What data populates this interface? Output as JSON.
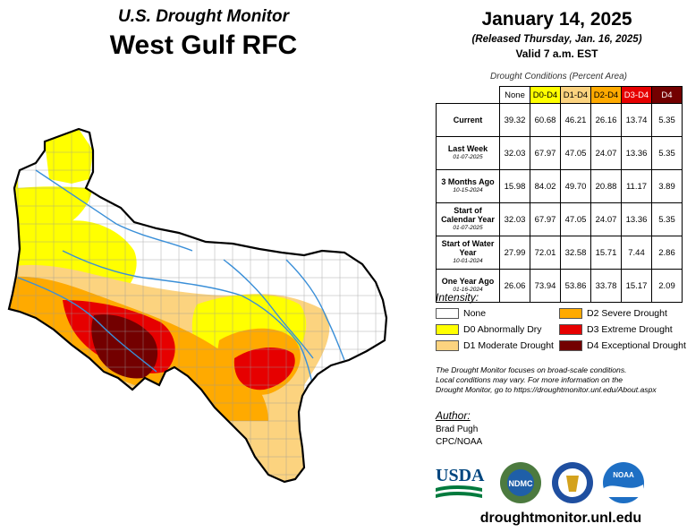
{
  "header": {
    "subtitle": "U.S. Drought Monitor",
    "title": "West Gulf RFC",
    "date": "January 14, 2025",
    "released": "(Released Thursday, Jan. 16, 2025)",
    "valid": "Valid 7 a.m. EST"
  },
  "table": {
    "caption": "Drought Conditions (Percent Area)",
    "columns": [
      "None",
      "D0-D4",
      "D1-D4",
      "D2-D4",
      "D3-D4",
      "D4"
    ],
    "rows": [
      {
        "label": "Current",
        "date": "",
        "values": [
          "39.32",
          "60.68",
          "46.21",
          "26.16",
          "13.74",
          "5.35"
        ]
      },
      {
        "label": "Last Week",
        "date": "01-07-2025",
        "values": [
          "32.03",
          "67.97",
          "47.05",
          "24.07",
          "13.36",
          "5.35"
        ]
      },
      {
        "label": "3 Months Ago",
        "date": "10-15-2024",
        "values": [
          "15.98",
          "84.02",
          "49.70",
          "20.88",
          "11.17",
          "3.89"
        ]
      },
      {
        "label": "Start of Calendar Year",
        "date": "01-07-2025",
        "values": [
          "32.03",
          "67.97",
          "47.05",
          "24.07",
          "13.36",
          "5.35"
        ]
      },
      {
        "label": "Start of Water Year",
        "date": "10-01-2024",
        "values": [
          "27.99",
          "72.01",
          "32.58",
          "15.71",
          "7.44",
          "2.86"
        ]
      },
      {
        "label": "One Year Ago",
        "date": "01-16-2024",
        "values": [
          "26.06",
          "73.94",
          "53.86",
          "33.78",
          "15.17",
          "2.09"
        ]
      }
    ]
  },
  "legend": {
    "title": "Intensity:",
    "items": [
      {
        "label": "None",
        "color": "#ffffff"
      },
      {
        "label": "D0 Abnormally Dry",
        "color": "#ffff00"
      },
      {
        "label": "D1 Moderate Drought",
        "color": "#fcd37f"
      },
      {
        "label": "D2 Severe Drought",
        "color": "#ffaa00"
      },
      {
        "label": "D3 Extreme Drought",
        "color": "#e60000"
      },
      {
        "label": "D4 Exceptional Drought",
        "color": "#730000"
      }
    ]
  },
  "note": {
    "line1": "The Drought Monitor focuses on broad-scale conditions.",
    "line2": "Local conditions may vary. For more information on the",
    "line3": "Drought Monitor, go to https://droughtmonitor.unl.edu/About.aspx"
  },
  "author": {
    "title": "Author:",
    "name": "Brad Pugh",
    "org": "CPC/NOAA"
  },
  "logos": {
    "usda": "USDA",
    "ndmc": "NDMC",
    "noaa": "NOAA"
  },
  "url": "droughtmonitor.unl.edu"
}
